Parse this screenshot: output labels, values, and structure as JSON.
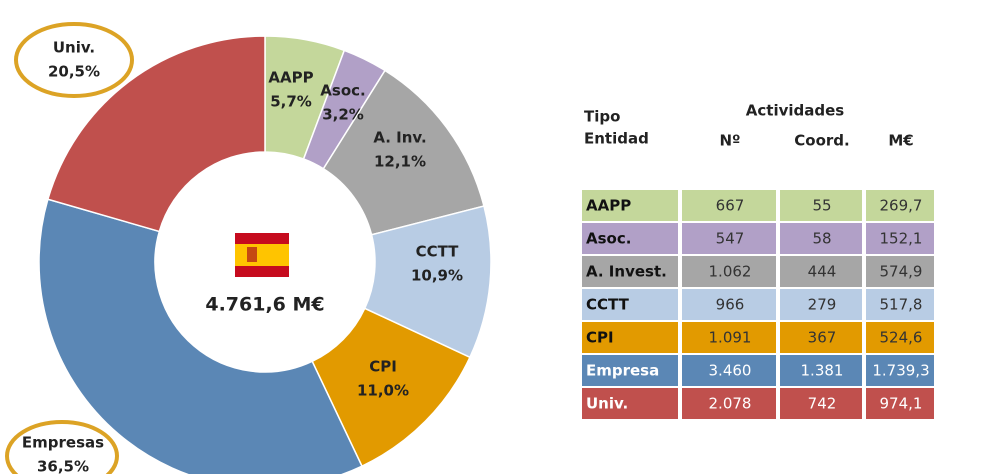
{
  "chart_data": {
    "type": "donut",
    "categories": [
      "AAPP",
      "Asoc.",
      "A. Inv.",
      "CCTT",
      "CPI",
      "Empresas",
      "Univ."
    ],
    "values": [
      5.7,
      3.2,
      12.1,
      10.9,
      11.0,
      36.5,
      20.5
    ],
    "value_labels": [
      "5,7%",
      "3,2%",
      "12,1%",
      "10,9%",
      "11,0%",
      "36,5%",
      "20,5%"
    ],
    "colors": [
      "#c4d79b",
      "#b1a0c7",
      "#a6a6a6",
      "#b8cce4",
      "#e29a00",
      "#5b87b5",
      "#c0504d"
    ],
    "center_label": "4.761,6 M€"
  },
  "table": {
    "header": {
      "entity": [
        "Tipo",
        "Entidad"
      ],
      "group": "Actividades",
      "columns": [
        "Nº",
        "Coord.",
        "M€"
      ]
    },
    "rows": [
      [
        "AAPP",
        "667",
        "55",
        "269,7"
      ],
      [
        "Asoc.",
        "547",
        "58",
        "152,1"
      ],
      [
        "A. Invest.",
        "1.062",
        "444",
        "574,9"
      ],
      [
        "CCTT",
        "966",
        "279",
        "517,8"
      ],
      [
        "CPI",
        "1.091",
        "367",
        "524,6"
      ],
      [
        "Empresa",
        "3.460",
        "1.381",
        "1.739,3"
      ],
      [
        "Univ.",
        "2.078",
        "742",
        "974,1"
      ]
    ],
    "row_colors": [
      "#c4d79b",
      "#b1a0c7",
      "#a6a6a6",
      "#b8cce4",
      "#e29a00",
      "#5b87b5",
      "#c0504d"
    ]
  }
}
